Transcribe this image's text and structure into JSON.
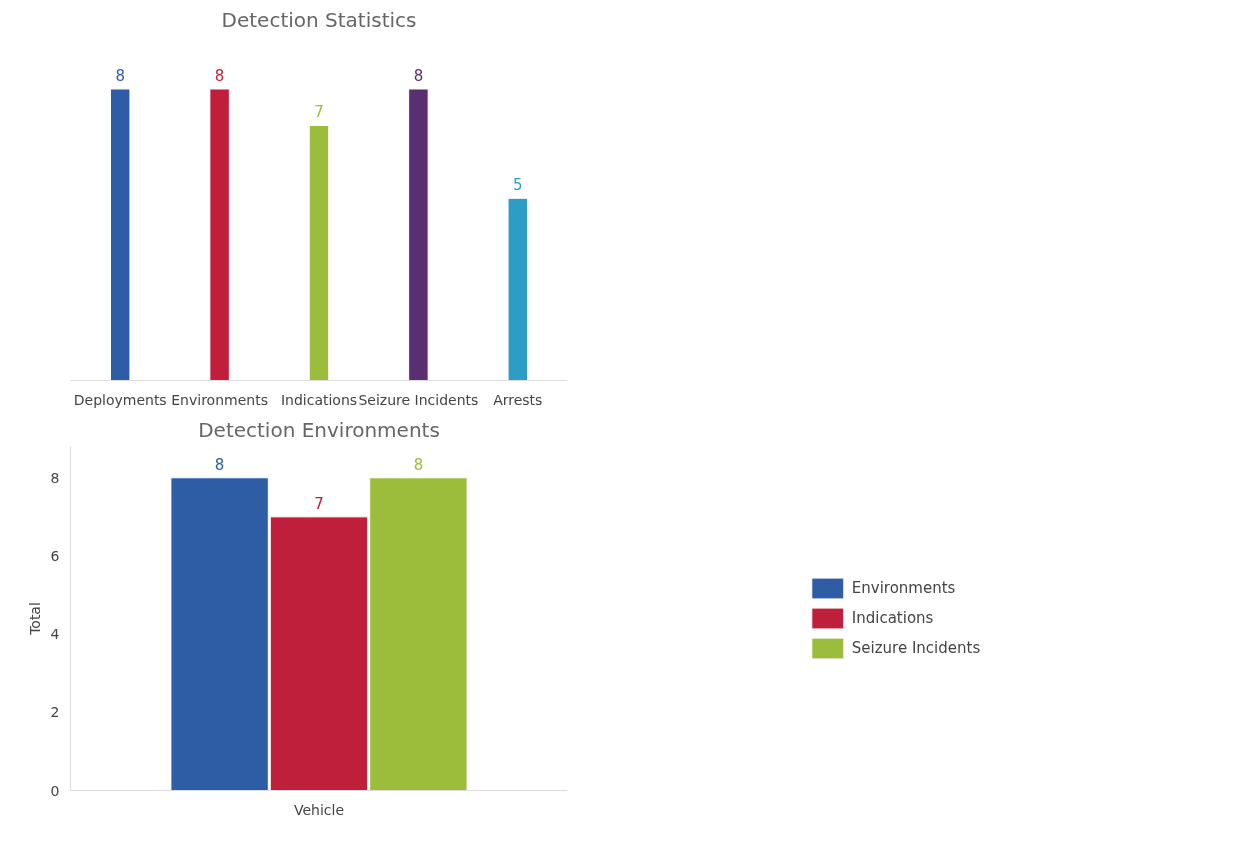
{
  "chart_data": [
    {
      "type": "bar",
      "title": "Detection Statistics",
      "categories": [
        "Deployments",
        "Environments",
        "Indications",
        "Seizure Incidents",
        "Arrests"
      ],
      "values": [
        8,
        8,
        7,
        8,
        5
      ],
      "colors": [
        "#2e5da6",
        "#c01f3c",
        "#9cbc3c",
        "#5a2f72",
        "#2c9ec6"
      ],
      "data_labels": true,
      "tick_labels": "x",
      "grid": false,
      "legend": false
    },
    {
      "type": "bar",
      "title": "Detection Environments",
      "ylabel": "Total",
      "categories": [
        "Vehicle"
      ],
      "series": [
        {
          "name": "Environments",
          "color": "#2e5da6",
          "values": [
            8
          ]
        },
        {
          "name": "Indications",
          "color": "#c01f3c",
          "values": [
            7
          ]
        },
        {
          "name": "Seizure Incidents",
          "color": "#9cbc3c",
          "values": [
            8
          ]
        }
      ],
      "ylim": [
        0,
        8.8
      ],
      "yticks": [
        0,
        2,
        4,
        6,
        8
      ],
      "data_labels": true,
      "grid": false,
      "legend": "right"
    }
  ]
}
